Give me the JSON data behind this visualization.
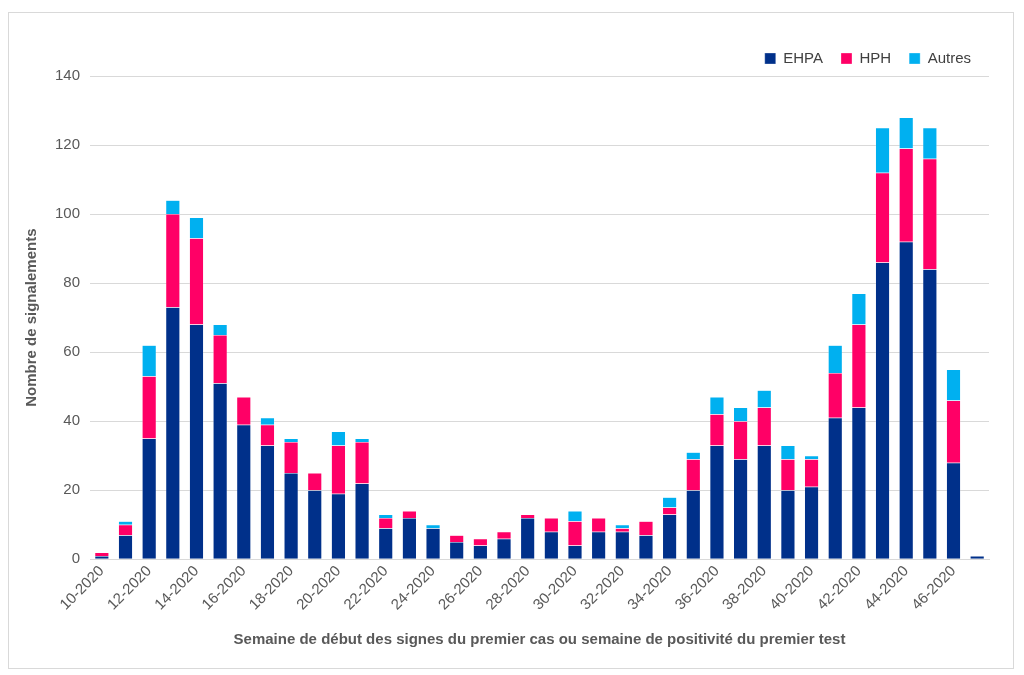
{
  "chart_data": {
    "type": "bar",
    "stacked": true,
    "xlabel": "Semaine de début des signes du premier cas ou semaine de positivité du premier test",
    "ylabel": "Nombre de signalements",
    "categories": [
      "10-2020",
      null,
      "12-2020",
      null,
      "14-2020",
      null,
      "16-2020",
      null,
      "18-2020",
      null,
      "20-2020",
      null,
      "22-2020",
      null,
      "24-2020",
      null,
      "26-2020",
      null,
      "28-2020",
      null,
      "30-2020",
      null,
      "32-2020",
      null,
      "34-2020",
      null,
      "36-2020",
      null,
      "38-2020",
      null,
      "40-2020",
      null,
      "42-2020",
      null,
      "44-2020",
      null,
      "46-2020",
      null
    ],
    "series": [
      {
        "name": "EHPA",
        "color": "#00308a",
        "values": [
          1,
          7,
          35,
          73,
          68,
          51,
          39,
          33,
          25,
          20,
          19,
          22,
          9,
          12,
          9,
          5,
          4,
          6,
          12,
          8,
          4,
          8,
          8,
          7,
          13,
          20,
          33,
          29,
          33,
          20,
          21,
          41,
          44,
          86,
          92,
          84,
          28,
          1
        ]
      },
      {
        "name": "HPH",
        "color": "#ff0066",
        "values": [
          1,
          3,
          18,
          27,
          25,
          14,
          8,
          6,
          9,
          5,
          14,
          12,
          3,
          2,
          0,
          2,
          2,
          2,
          1,
          4,
          7,
          4,
          1,
          4,
          2,
          9,
          9,
          11,
          11,
          9,
          8,
          13,
          24,
          26,
          27,
          32,
          18,
          0
        ]
      },
      {
        "name": "Autres",
        "color": "#00b0f0",
        "values": [
          0,
          1,
          9,
          4,
          6,
          3,
          0,
          2,
          1,
          0,
          4,
          1,
          1,
          0,
          1,
          0,
          0,
          0,
          0,
          0,
          3,
          0,
          1,
          0,
          3,
          2,
          5,
          4,
          5,
          4,
          1,
          8,
          9,
          13,
          9,
          9,
          9,
          0
        ]
      }
    ],
    "ylim": [
      0,
      140
    ],
    "yticks": [
      0,
      20,
      40,
      60,
      80,
      100,
      120,
      140
    ],
    "grid": "y",
    "legend": "top right"
  }
}
